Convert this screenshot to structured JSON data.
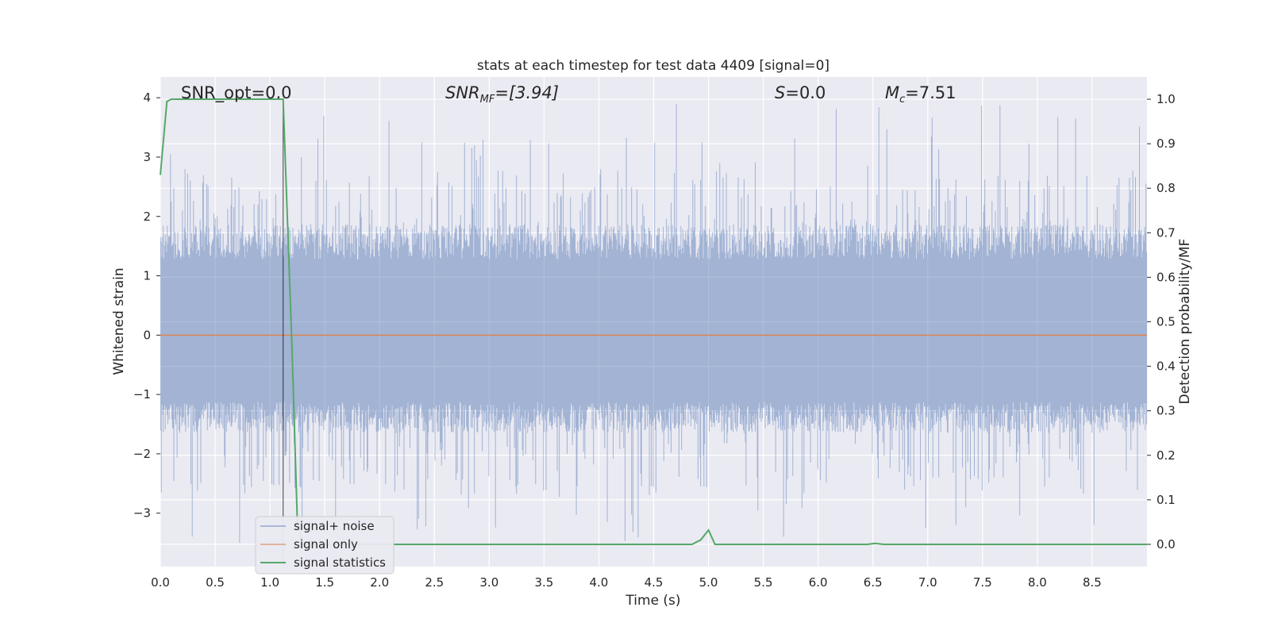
{
  "chart_data": {
    "type": "line",
    "title": "stats at each timestep for test data 4409 [signal=0]",
    "xlabel": "Time (s)",
    "ylabel": "Whitened strain",
    "ylabel_right": "Detection probability/MF",
    "xlim": [
      0.0,
      9.0
    ],
    "ylim": [
      -3.9,
      4.35
    ],
    "ylim_right": [
      -0.05,
      1.05
    ],
    "x_ticks": [
      "0.0",
      "0.5",
      "1.0",
      "1.5",
      "2.0",
      "2.5",
      "3.0",
      "3.5",
      "4.0",
      "4.5",
      "5.0",
      "5.5",
      "6.0",
      "6.5",
      "7.0",
      "7.5",
      "8.0",
      "8.5"
    ],
    "y_ticks": [
      "4",
      "3",
      "2",
      "1",
      "0",
      "−1",
      "−2",
      "−3"
    ],
    "y_right_ticks": [
      "1.0",
      "0.9",
      "0.8",
      "0.7",
      "0.6",
      "0.5",
      "0.4",
      "0.3",
      "0.2",
      "0.1",
      "0.0"
    ],
    "grid": true,
    "legend_position": "lower-left",
    "colors": {
      "background": "#eaeaf2",
      "grid": "#ffffff",
      "noise": "#4c72b0",
      "signal_only": "#dd8452",
      "statistics": "#55a868",
      "marker": "#000000"
    },
    "annotations": {
      "snr_opt": "SNR_opt=0.0",
      "snr_mf_main": "SNR",
      "snr_mf_sub": "MF",
      "snr_mf_rest": "=[3.94]",
      "s_main": "S",
      "s_rest": "=0.0",
      "mc_main": "M",
      "mc_sub": "c",
      "mc_rest": "=7.51"
    },
    "marker_time": 1.12,
    "noise_envelope": {
      "typical_max": 1.7,
      "typical_min": -1.5,
      "peak_max": 4.0,
      "peak_min": -3.55
    },
    "series": [
      {
        "name": "signal+ noise",
        "type": "noise"
      },
      {
        "name": "signal only",
        "x": [
          0.0,
          9.0
        ],
        "y": [
          0.0,
          0.0
        ]
      },
      {
        "name": "signal statistics",
        "x": [
          0.0,
          0.06,
          0.1,
          0.2,
          0.5,
          0.8,
          1.0,
          1.12,
          1.2,
          1.25,
          1.3,
          1.5,
          4.85,
          4.93,
          5.0,
          5.06,
          5.5,
          6.45,
          6.52,
          6.6,
          7.0,
          9.0
        ],
        "y": [
          0.83,
          0.995,
          1.0,
          1.0,
          1.0,
          1.0,
          1.0,
          1.0,
          0.45,
          0.05,
          0.0,
          0.0,
          0.0,
          0.01,
          0.032,
          0.0,
          0.0,
          0.0,
          0.002,
          0.0,
          0.0,
          0.0
        ]
      }
    ]
  }
}
